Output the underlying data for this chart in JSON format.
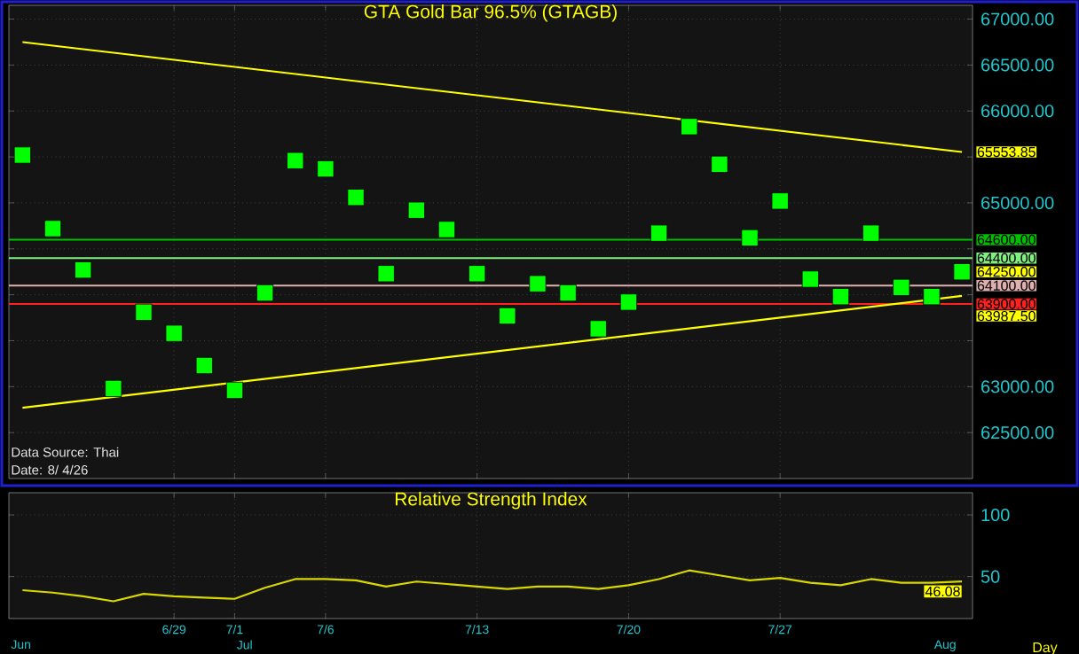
{
  "chart_data": [
    {
      "type": "scatter",
      "title": "GTA Gold Bar 96.5% (GTAGB)",
      "categories": [
        null,
        null,
        null,
        null,
        null,
        null,
        null,
        null,
        null,
        null,
        null,
        null,
        null,
        null,
        null,
        null,
        null,
        null,
        null,
        null,
        null,
        null,
        null,
        null,
        null,
        null,
        null,
        null,
        null,
        null,
        null,
        null
      ],
      "tick_labels": "y",
      "grid": true,
      "ylim": [
        62000,
        67150
      ],
      "yticks": [
        {
          "value": 62500,
          "label": "62500.00"
        },
        {
          "value": 63000,
          "label": "63000.00"
        },
        {
          "value": 63500,
          "label": null
        },
        {
          "value": 64000,
          "label": null
        },
        {
          "value": 64500,
          "label": null
        },
        {
          "value": 65000,
          "label": "65000.00"
        },
        {
          "value": 65500,
          "label": null
        },
        {
          "value": 66000,
          "label": "66000.00"
        },
        {
          "value": 66500,
          "label": "66500.00"
        },
        {
          "value": 67000,
          "label": "67000.00"
        }
      ],
      "series": [
        {
          "type": "scatter",
          "marker": "square",
          "color": "#00ff00",
          "values": [
            65520,
            64720,
            64270,
            62980,
            63810,
            63580,
            63230,
            62960,
            64020,
            65460,
            65370,
            65060,
            64230,
            64920,
            64710,
            64230,
            63770,
            64120,
            64020,
            63630,
            63920,
            64670,
            65830,
            65420,
            64620,
            65020,
            64170,
            63980,
            64670,
            64080,
            63980,
            64250
          ],
          "value_labels": [
            null,
            null,
            null,
            null,
            null,
            null,
            null,
            null,
            null,
            null,
            null,
            null,
            null,
            null,
            null,
            null,
            null,
            null,
            null,
            null,
            null,
            null,
            null,
            null,
            null,
            null,
            null,
            null,
            null,
            null,
            null,
            "64250.00"
          ]
        },
        {
          "type": "line",
          "marker": "none",
          "color": "#ffff00",
          "values": [
            66750,
            null,
            null,
            null,
            null,
            null,
            null,
            null,
            null,
            null,
            null,
            null,
            null,
            null,
            null,
            null,
            null,
            null,
            null,
            null,
            null,
            null,
            null,
            null,
            null,
            null,
            null,
            null,
            null,
            null,
            null,
            65553.85
          ],
          "value_labels": [
            null,
            null,
            null,
            null,
            null,
            null,
            null,
            null,
            null,
            null,
            null,
            null,
            null,
            null,
            null,
            null,
            null,
            null,
            null,
            null,
            null,
            null,
            null,
            null,
            null,
            null,
            null,
            null,
            null,
            null,
            null,
            "65553.85"
          ]
        },
        {
          "type": "line",
          "marker": "none",
          "color": "#ffff00",
          "values": [
            62770,
            null,
            null,
            null,
            null,
            null,
            null,
            null,
            null,
            null,
            null,
            null,
            null,
            null,
            null,
            null,
            null,
            null,
            null,
            null,
            null,
            null,
            null,
            null,
            null,
            null,
            null,
            null,
            null,
            null,
            null,
            63987.5
          ],
          "value_labels": [
            null,
            null,
            null,
            null,
            null,
            null,
            null,
            null,
            null,
            null,
            null,
            null,
            null,
            null,
            null,
            null,
            null,
            null,
            null,
            null,
            null,
            null,
            null,
            null,
            null,
            null,
            null,
            null,
            null,
            null,
            null,
            "63987.50"
          ]
        }
      ],
      "ref_lines": [
        {
          "axis": "y",
          "value": 64600,
          "label": "64600.00",
          "color": "#00c000"
        },
        {
          "axis": "y",
          "value": 64400,
          "label": "64400.00",
          "color": "#80f080"
        },
        {
          "axis": "y",
          "value": 64100,
          "label": "64100.00",
          "color": "#e0b0b0"
        },
        {
          "axis": "y",
          "value": 63900,
          "label": "63900.00",
          "color": "#ff2020"
        }
      ],
      "annotations": [
        "Data Source: Thai",
        "Date: 8/ 4/26"
      ]
    },
    {
      "type": "line",
      "title": "Relative Strength Index",
      "xlabel": "Day",
      "categories": [
        null,
        null,
        null,
        null,
        null,
        "6/29",
        null,
        "7/1",
        null,
        null,
        "7/6",
        null,
        null,
        null,
        null,
        "7/13",
        null,
        null,
        null,
        null,
        "7/20",
        null,
        null,
        null,
        null,
        "7/27",
        null,
        null,
        null,
        null,
        null,
        null
      ],
      "grid": true,
      "ylim": [
        16,
        118
      ],
      "yticks": [
        50,
        100
      ],
      "series": [
        {
          "color": "#d8d800",
          "values": [
            39,
            37,
            34,
            30,
            36,
            34,
            33,
            32,
            41,
            48,
            48,
            47,
            42,
            46,
            44,
            42,
            40,
            42,
            42,
            40,
            43,
            48,
            55,
            51,
            47,
            49,
            45,
            43,
            48,
            45,
            45,
            46.08
          ],
          "value_labels": [
            null,
            null,
            null,
            null,
            null,
            null,
            null,
            null,
            null,
            null,
            null,
            null,
            null,
            null,
            null,
            null,
            null,
            null,
            null,
            null,
            null,
            null,
            null,
            null,
            null,
            null,
            null,
            null,
            null,
            null,
            null,
            "46.08"
          ]
        }
      ],
      "annotations": [
        "Jun",
        "Jul",
        "Aug"
      ]
    }
  ]
}
